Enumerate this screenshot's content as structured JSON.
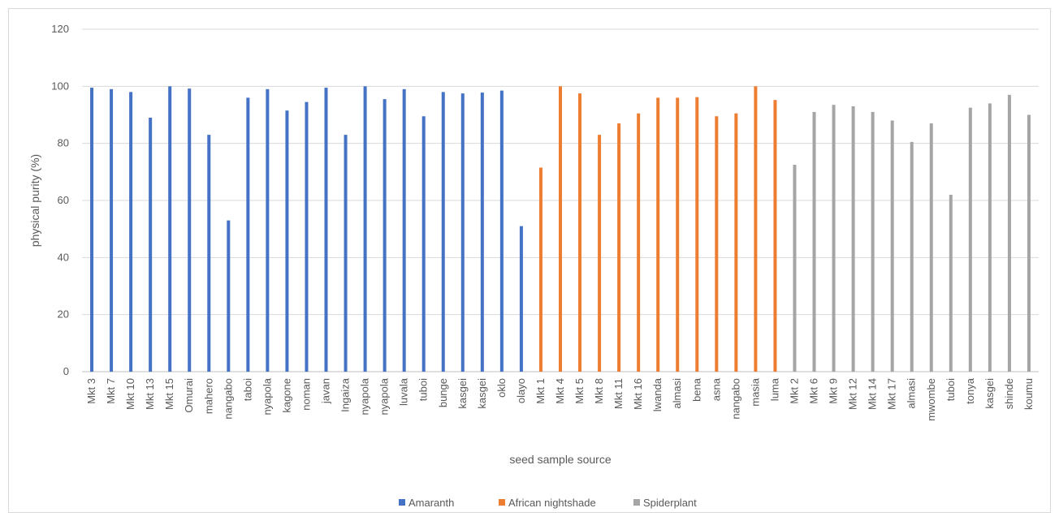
{
  "chart_data": {
    "type": "bar",
    "xlabel": "seed sample source",
    "ylabel": "physical purity (%)",
    "ylim": [
      0,
      120
    ],
    "yticks": [
      0,
      20,
      40,
      60,
      80,
      100,
      120
    ],
    "grid": true,
    "legend_position": "bottom",
    "series": [
      {
        "name": "Amaranth",
        "color": "#4472c4",
        "categories": [
          "Mkt 3",
          "Mkt 7",
          "Mkt 10",
          "Mkt 13",
          "Mkt 15",
          "Omurai",
          "mahero",
          "nangabo",
          "taboi",
          "nyapola",
          "kagone",
          "noman",
          "javan",
          "Ingaiza",
          "nyapola",
          "nyapola",
          "luvala",
          "tuboi",
          "bunge",
          "kasgei",
          "kasgei",
          "oklo",
          "olayo"
        ],
        "values": [
          99.5,
          99,
          98,
          89,
          100,
          99.2,
          83,
          53,
          96,
          99,
          91.5,
          94.5,
          99.5,
          83,
          100,
          95.5,
          99,
          89.5,
          98,
          97.5,
          97.8,
          98.5,
          51
        ]
      },
      {
        "name": "African nightshade",
        "color": "#ed7d31",
        "categories": [
          "Mkt 1",
          "Mkt 4",
          "Mkt 5",
          "Mkt 8",
          "Mkt 11",
          "Mkt 16",
          "lwanda",
          "almasi",
          "bena",
          "asna",
          "nangabo",
          "masia",
          "luma"
        ],
        "values": [
          71.5,
          100,
          97.5,
          83,
          87,
          90.5,
          96,
          96,
          96.2,
          89.5,
          90.5,
          100,
          95.2
        ]
      },
      {
        "name": "Spiderplant",
        "color": "#a5a5a5",
        "categories": [
          "Mkt 2",
          "Mkt 6",
          "Mkt 9",
          "Mkt 12",
          "Mkt 14",
          "Mkt 17",
          "almasi",
          "mwombe",
          "tuboi",
          "tonya",
          "kasgei",
          "shinde",
          "koumu"
        ],
        "values": [
          72.5,
          91,
          93.5,
          93,
          91,
          88,
          80.5,
          87,
          62,
          92.5,
          94,
          97,
          90
        ]
      }
    ]
  }
}
